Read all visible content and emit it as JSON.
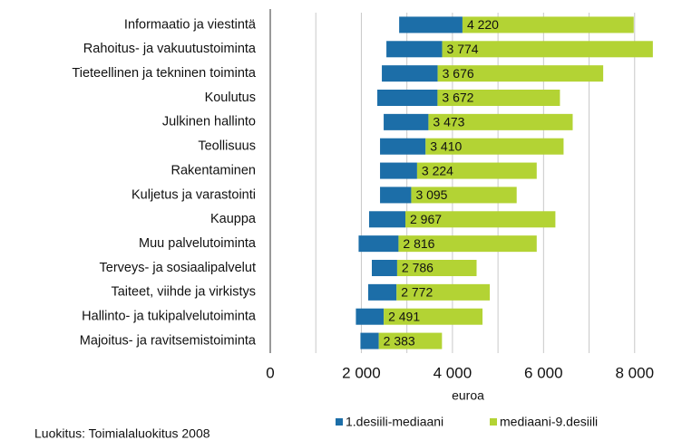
{
  "chart_data": {
    "type": "floating-bar",
    "categories": [
      "Informaatio ja viestintä",
      "Rahoitus- ja vakuutustoiminta",
      "Tieteellinen ja tekninen toiminta",
      "Koulutus",
      "Julkinen hallinto",
      "Teollisuus",
      "Rakentaminen",
      "Kuljetus ja varastointi",
      "Kauppa",
      "Muu palvelutoiminta",
      "Terveys- ja sosiaalipalvelut",
      "Taiteet, viihde ja virkistys",
      "Hallinto- ja tukipalvelutoiminta",
      "Majoitus- ja ravitsemistoiminta"
    ],
    "series": [
      {
        "name": "1.desiili-mediaani",
        "color": "#1c6ea8",
        "start": [
          2830,
          2550,
          2450,
          2350,
          2490,
          2410,
          2410,
          2410,
          2170,
          1940,
          2230,
          2150,
          1880,
          1980
        ],
        "values": [
          4220,
          3774,
          3676,
          3672,
          3473,
          3410,
          3224,
          3095,
          2967,
          2816,
          2786,
          2772,
          2491,
          2383
        ],
        "value_labels": [
          "4 220",
          "3 774",
          "3 676",
          "3 672",
          "3 473",
          "3 410",
          "3 224",
          "3 095",
          "2 967",
          "2 816",
          "2 786",
          "2 772",
          "2 491",
          "2 383"
        ]
      },
      {
        "name": "mediaani-9.desiili",
        "color": "#b3d334",
        "values": [
          7980,
          8400,
          7310,
          6360,
          6640,
          6440,
          5850,
          5410,
          6260,
          5850,
          4530,
          4820,
          4660,
          3770
        ]
      }
    ],
    "xlim": [
      0,
      9000
    ],
    "xticks": [
      0,
      {
        "value": 2000,
        "label": "2 000"
      },
      {
        "value": 4000,
        "label": "4 000"
      },
      {
        "value": 6000,
        "label": "6 000"
      },
      {
        "value": 8000,
        "label": "8 000"
      }
    ],
    "xgrid": [
      1000,
      2000,
      3000,
      4000,
      5000,
      6000,
      7000,
      8000
    ],
    "grid": true,
    "xlabel": "euroa",
    "legend": "bottom",
    "footnote": "Luokitus: Toimialaluokitus 2008"
  }
}
